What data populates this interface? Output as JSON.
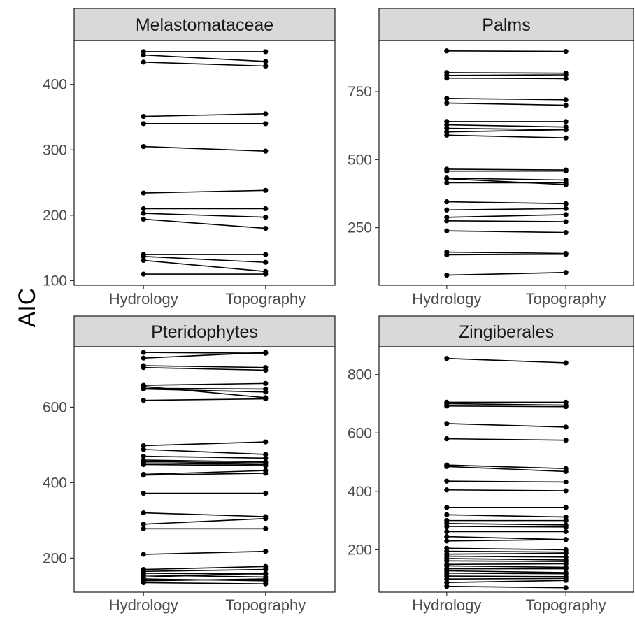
{
  "figure": {
    "ylabel": "AIC"
  },
  "chart_data": [
    {
      "type": "line",
      "title": "Melastomataceae",
      "categories": [
        "Hydrology",
        "Topography"
      ],
      "ylim": [
        93,
        467
      ],
      "yticks": [
        100,
        200,
        300,
        400
      ],
      "pairs": [
        [
          450,
          450
        ],
        [
          445,
          435
        ],
        [
          434,
          428
        ],
        [
          351,
          355
        ],
        [
          340,
          340
        ],
        [
          305,
          298
        ],
        [
          234,
          238
        ],
        [
          210,
          210
        ],
        [
          203,
          197
        ],
        [
          194,
          180
        ],
        [
          140,
          140
        ],
        [
          137,
          128
        ],
        [
          131,
          114
        ],
        [
          110,
          110
        ]
      ]
    },
    {
      "type": "line",
      "title": "Palms",
      "categories": [
        "Hydrology",
        "Topography"
      ],
      "ylim": [
        38,
        938
      ],
      "yticks": [
        250,
        500,
        750
      ],
      "pairs": [
        [
          900,
          898
        ],
        [
          820,
          818
        ],
        [
          810,
          812
        ],
        [
          800,
          798
        ],
        [
          725,
          720
        ],
        [
          708,
          700
        ],
        [
          640,
          640
        ],
        [
          628,
          620
        ],
        [
          615,
          610
        ],
        [
          602,
          610
        ],
        [
          590,
          580
        ],
        [
          465,
          462
        ],
        [
          458,
          458
        ],
        [
          432,
          425
        ],
        [
          430,
          408
        ],
        [
          415,
          415
        ],
        [
          345,
          338
        ],
        [
          315,
          320
        ],
        [
          288,
          298
        ],
        [
          275,
          272
        ],
        [
          238,
          232
        ],
        [
          160,
          155
        ],
        [
          150,
          152
        ],
        [
          75,
          85
        ]
      ]
    },
    {
      "type": "line",
      "title": "Pteridophytes",
      "categories": [
        "Hydrology",
        "Topography"
      ],
      "ylim": [
        110,
        760
      ],
      "yticks": [
        200,
        400,
        600
      ],
      "pairs": [
        [
          745,
          743
        ],
        [
          730,
          745
        ],
        [
          710,
          705
        ],
        [
          705,
          698
        ],
        [
          658,
          663
        ],
        [
          655,
          625
        ],
        [
          650,
          648
        ],
        [
          648,
          640
        ],
        [
          618,
          622
        ],
        [
          498,
          508
        ],
        [
          488,
          475
        ],
        [
          470,
          465
        ],
        [
          460,
          455
        ],
        [
          456,
          452
        ],
        [
          452,
          448
        ],
        [
          448,
          445
        ],
        [
          422,
          432
        ],
        [
          420,
          425
        ],
        [
          372,
          372
        ],
        [
          320,
          310
        ],
        [
          290,
          305
        ],
        [
          278,
          278
        ],
        [
          210,
          218
        ],
        [
          170,
          178
        ],
        [
          165,
          170
        ],
        [
          160,
          158
        ],
        [
          155,
          150
        ],
        [
          150,
          160
        ],
        [
          145,
          140
        ],
        [
          140,
          145
        ],
        [
          135,
          132
        ]
      ]
    },
    {
      "type": "line",
      "title": "Zingiberales",
      "categories": [
        "Hydrology",
        "Topography"
      ],
      "ylim": [
        55,
        895
      ],
      "yticks": [
        200,
        400,
        600,
        800
      ],
      "pairs": [
        [
          855,
          840
        ],
        [
          705,
          705
        ],
        [
          700,
          695
        ],
        [
          692,
          690
        ],
        [
          632,
          620
        ],
        [
          580,
          575
        ],
        [
          490,
          478
        ],
        [
          485,
          468
        ],
        [
          435,
          432
        ],
        [
          405,
          402
        ],
        [
          345,
          345
        ],
        [
          320,
          312
        ],
        [
          300,
          300
        ],
        [
          290,
          285
        ],
        [
          280,
          278
        ],
        [
          262,
          262
        ],
        [
          245,
          235
        ],
        [
          230,
          235
        ],
        [
          205,
          200
        ],
        [
          195,
          192
        ],
        [
          185,
          188
        ],
        [
          178,
          175
        ],
        [
          170,
          165
        ],
        [
          162,
          160
        ],
        [
          150,
          152
        ],
        [
          145,
          140
        ],
        [
          135,
          135
        ],
        [
          128,
          122
        ],
        [
          120,
          118
        ],
        [
          110,
          108
        ],
        [
          100,
          102
        ],
        [
          88,
          95
        ],
        [
          75,
          70
        ]
      ]
    }
  ]
}
